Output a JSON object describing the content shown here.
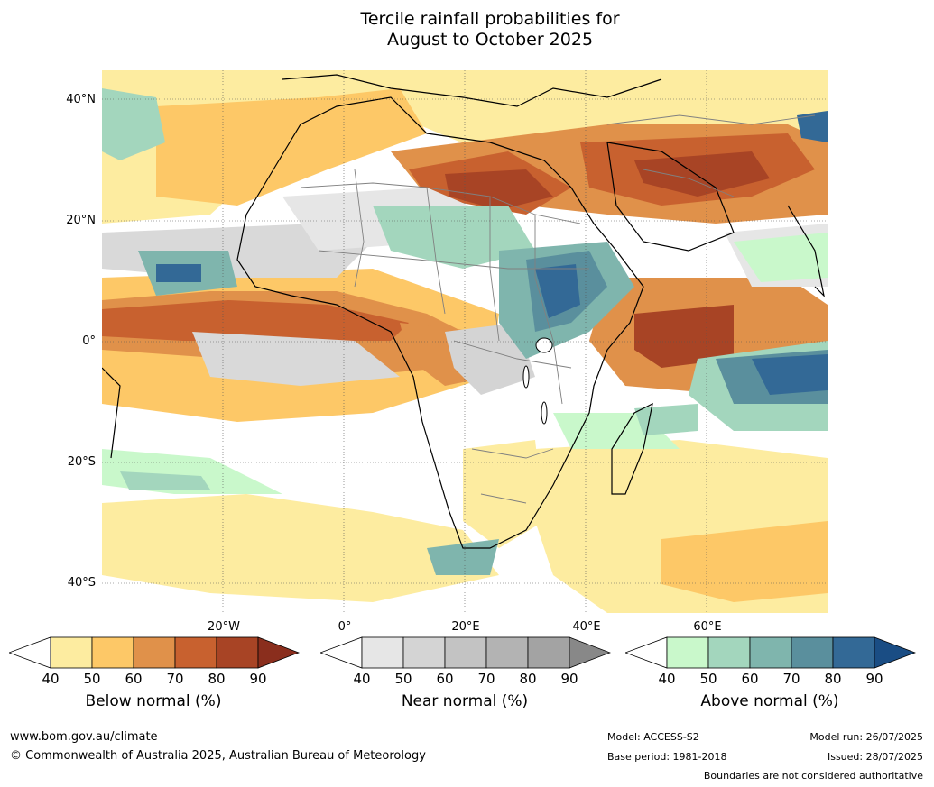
{
  "title_line1": "Tercile rainfall probabilities for",
  "title_line2": "August to October 2025",
  "lat_labels": [
    "40°N",
    "20°N",
    "0°",
    "20°S",
    "40°S"
  ],
  "lon_labels": [
    "20°W",
    "0°",
    "20°E",
    "40°E",
    "60°E"
  ],
  "legends": [
    {
      "title": "Below normal (%)",
      "ticks": [
        "40",
        "50",
        "60",
        "70",
        "80",
        "90"
      ],
      "colors": [
        "#ffffff",
        "#fdeca0",
        "#fdc867",
        "#e0914a",
        "#c8612f",
        "#a84425",
        "#8a2e1d"
      ]
    },
    {
      "title": "Near normal (%)",
      "ticks": [
        "40",
        "50",
        "60",
        "70",
        "80",
        "90"
      ],
      "colors": [
        "#ffffff",
        "#e6e6e6",
        "#d4d4d4",
        "#c3c3c3",
        "#b3b3b3",
        "#a3a3a3",
        "#888888"
      ]
    },
    {
      "title": "Above normal (%)",
      "ticks": [
        "40",
        "50",
        "60",
        "70",
        "80",
        "90"
      ],
      "colors": [
        "#ffffff",
        "#c9f8cb",
        "#a3d6bd",
        "#7fb5ad",
        "#5a8f9d",
        "#336996",
        "#1a4d84"
      ]
    }
  ],
  "footer": {
    "website": "www.bom.gov.au/climate",
    "copyright": "© Commonwealth of Australia 2025, Australian Bureau of Meteorology",
    "model": "Model: ACCESS-S2",
    "base_period": "Base period: 1981-2018",
    "model_run": "Model run: 26/07/2025",
    "issued": "Issued: 28/07/2025",
    "disclaimer": "Boundaries are not considered authoritative"
  },
  "map_colors": {
    "ocean_base": "#ffffff",
    "below_light": "#fdeca0",
    "below_mid": "#fdc867",
    "below_strong": "#e0914a",
    "below_high": "#c8612f",
    "below_max": "#a84425",
    "near": "#d9d9d9",
    "above_light": "#c9f8cb",
    "above_mid": "#a3d6bd",
    "above_strong": "#5a8f9d",
    "above_max": "#336996",
    "coast": "#000000",
    "borders": "#808080"
  }
}
